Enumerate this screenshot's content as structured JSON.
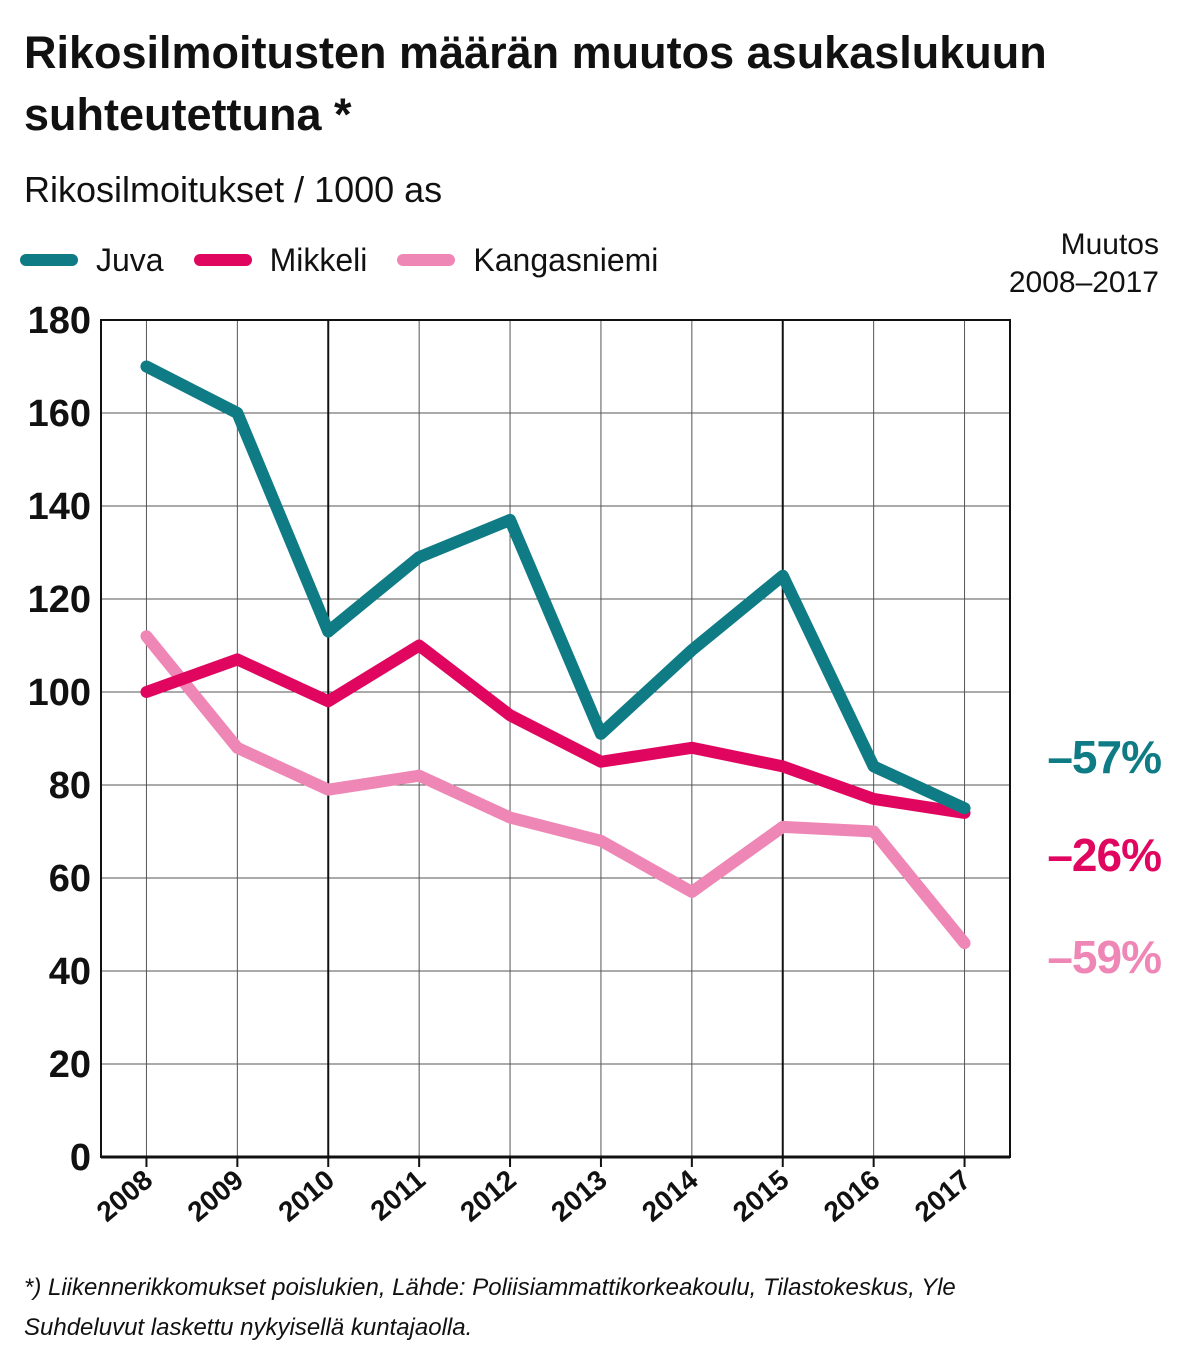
{
  "header": {
    "title": "Rikosilmoitusten määrän muutos asukaslukuun suhteutettuna *",
    "subtitle": "Rikosilmoitukset / 1000 as"
  },
  "change": {
    "header_line1": "Muutos",
    "header_line2": "2008–2017",
    "values": [
      {
        "series": "Juva",
        "label": "–57%",
        "color": "#0e7b85"
      },
      {
        "series": "Mikkeli",
        "label": "–26%",
        "color": "#e0065f"
      },
      {
        "series": "Kangasniemi",
        "label": "–59%",
        "color": "#ef87b6"
      }
    ]
  },
  "footnote": {
    "line1": "*) Liikennerikkomukset poislukien, Lähde: Poliisiammattikorkeakoulu, Tilastokeskus,  Yle",
    "line2": "Suhdeluvut laskettu nykyisellä kuntajaolla."
  },
  "chart_data": {
    "type": "line",
    "title": "Rikosilmoitusten määrän muutos asukaslukuun suhteutettuna *",
    "subtitle": "Rikosilmoitukset / 1000 as",
    "xlabel": "",
    "ylabel": "",
    "categories": [
      "2008",
      "2009",
      "2010",
      "2011",
      "2012",
      "2013",
      "2014",
      "2015",
      "2016",
      "2017"
    ],
    "ylim": [
      0,
      180
    ],
    "yticks": [
      0,
      20,
      40,
      60,
      80,
      100,
      120,
      140,
      160,
      180
    ],
    "grid": true,
    "legend_position": "top-left",
    "series": [
      {
        "name": "Juva",
        "color": "#0e7b85",
        "values": [
          170,
          160,
          113,
          129,
          137,
          91,
          109,
          125,
          84,
          75
        ]
      },
      {
        "name": "Mikkeli",
        "color": "#e0065f",
        "values": [
          100,
          107,
          98,
          110,
          95,
          85,
          88,
          84,
          77,
          74
        ]
      },
      {
        "name": "Kangasniemi",
        "color": "#ef87b6",
        "values": [
          112,
          88,
          79,
          82,
          73,
          68,
          57,
          71,
          70,
          46
        ]
      }
    ]
  }
}
